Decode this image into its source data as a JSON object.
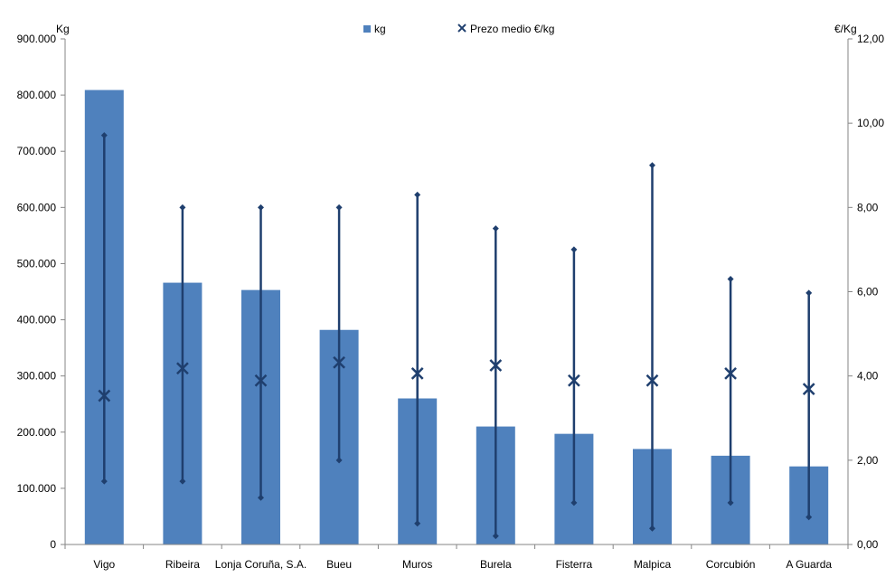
{
  "chart_data": {
    "type": "bar",
    "categories": [
      "Vigo",
      "Ribeira",
      "Lonja Coruña, S.A.",
      "Bueu",
      "Muros",
      "Burela",
      "Fisterra",
      "Malpica",
      "Corcubión",
      "A Guarda"
    ],
    "series": [
      {
        "name": "kg",
        "type": "bar",
        "axis": "left",
        "color": "#4F81BD",
        "values": [
          809000,
          466000,
          453000,
          382000,
          260000,
          210000,
          197000,
          170000,
          158000,
          139000
        ]
      },
      {
        "name": "Prezo medio €/kg",
        "type": "marker",
        "axis": "right",
        "color": "#1F3F6E",
        "values": [
          3.53,
          4.18,
          3.89,
          4.32,
          4.06,
          4.25,
          3.89,
          3.89,
          4.06,
          3.69
        ],
        "low": [
          1.5,
          1.5,
          1.11,
          2.0,
          0.5,
          0.2,
          0.99,
          0.38,
          0.99,
          0.65
        ],
        "high": [
          9.71,
          8.0,
          8.0,
          8.0,
          8.3,
          7.5,
          7.0,
          9.0,
          6.3,
          5.97
        ]
      }
    ],
    "yaxis_left": {
      "label": "Kg",
      "min": 0,
      "max": 900000,
      "step": 100000,
      "ticks": [
        "0",
        "100.000",
        "200.000",
        "300.000",
        "400.000",
        "500.000",
        "600.000",
        "700.000",
        "800.000",
        "900.000"
      ]
    },
    "yaxis_right": {
      "label": "€/Kg",
      "min": 0,
      "max": 12,
      "step": 2,
      "ticks": [
        "0,00",
        "2,00",
        "4,00",
        "6,00",
        "8,00",
        "10,00",
        "12,00"
      ]
    },
    "legend": {
      "position": "top",
      "entries": [
        "kg",
        "Prezo medio €/kg"
      ]
    },
    "grid": false
  }
}
